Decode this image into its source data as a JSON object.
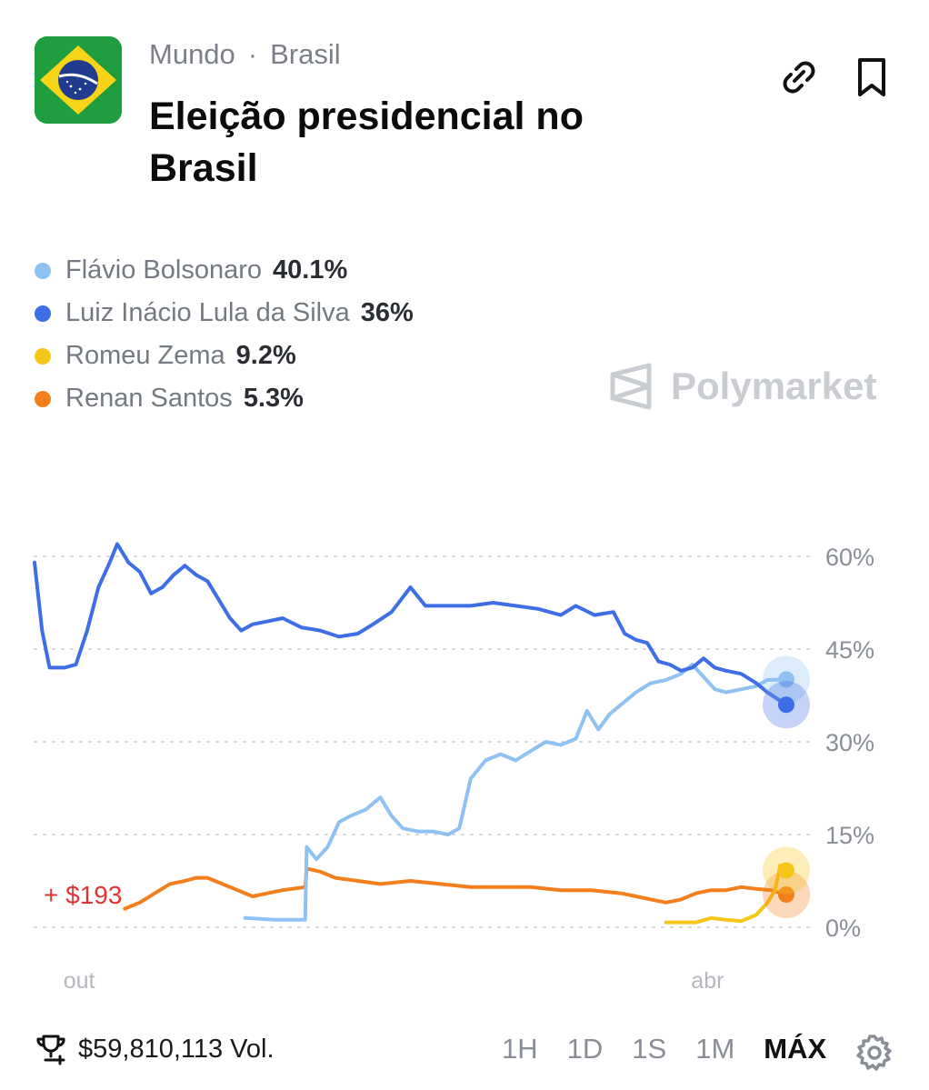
{
  "header": {
    "breadcrumb": [
      "Mundo",
      "Brasil"
    ],
    "separator": "·",
    "title": "Eleição presidencial no Brasil",
    "flag_icon": "brazil-flag-icon",
    "actions": [
      "link-icon",
      "bookmark-icon"
    ]
  },
  "legend": [
    {
      "name": "Flávio Bolsonaro",
      "value": "40.1%",
      "color": "#8fc1f3"
    },
    {
      "name": "Luiz Inácio Lula da Silva",
      "value": "36%",
      "color": "#3d6ee6"
    },
    {
      "name": "Romeu Zema",
      "value": "9.2%",
      "color": "#f5c518"
    },
    {
      "name": "Renan Santos",
      "value": "5.3%",
      "color": "#f27f1b"
    }
  ],
  "watermark": "Polymarket",
  "chart_data": {
    "type": "line",
    "ylim": [
      0,
      60
    ],
    "y_ticks": [
      "60%",
      "45%",
      "30%",
      "15%",
      "0%"
    ],
    "y_tick_values": [
      60,
      45,
      30,
      15,
      0
    ],
    "x_ticks": [
      "out",
      "abr"
    ],
    "x_tick_positions": [
      0.065,
      0.9
    ],
    "x_range": [
      0,
      1
    ],
    "annotation": "+ $193",
    "series": [
      {
        "name": "Luiz Inácio Lula da Silva",
        "color": "#3d6ee6",
        "points": [
          [
            0,
            59
          ],
          [
            0.01,
            48
          ],
          [
            0.02,
            42
          ],
          [
            0.04,
            42
          ],
          [
            0.055,
            42.5
          ],
          [
            0.07,
            48
          ],
          [
            0.085,
            55
          ],
          [
            0.1,
            59
          ],
          [
            0.11,
            62
          ],
          [
            0.125,
            59
          ],
          [
            0.14,
            57.5
          ],
          [
            0.155,
            54
          ],
          [
            0.17,
            55
          ],
          [
            0.185,
            57
          ],
          [
            0.2,
            58.5
          ],
          [
            0.215,
            57
          ],
          [
            0.23,
            56
          ],
          [
            0.245,
            53
          ],
          [
            0.26,
            50
          ],
          [
            0.275,
            48
          ],
          [
            0.29,
            49
          ],
          [
            0.31,
            49.5
          ],
          [
            0.33,
            50
          ],
          [
            0.355,
            48.5
          ],
          [
            0.38,
            48
          ],
          [
            0.405,
            47
          ],
          [
            0.43,
            47.5
          ],
          [
            0.45,
            49
          ],
          [
            0.475,
            51
          ],
          [
            0.5,
            55
          ],
          [
            0.52,
            52
          ],
          [
            0.55,
            52
          ],
          [
            0.58,
            52
          ],
          [
            0.61,
            52.5
          ],
          [
            0.64,
            52
          ],
          [
            0.67,
            51.5
          ],
          [
            0.7,
            50.5
          ],
          [
            0.72,
            52
          ],
          [
            0.745,
            50.5
          ],
          [
            0.77,
            51
          ],
          [
            0.785,
            47.5
          ],
          [
            0.8,
            46.5
          ],
          [
            0.815,
            46
          ],
          [
            0.83,
            43
          ],
          [
            0.845,
            42.5
          ],
          [
            0.86,
            41.5
          ],
          [
            0.875,
            42
          ],
          [
            0.89,
            43.5
          ],
          [
            0.905,
            42
          ],
          [
            0.92,
            41.5
          ],
          [
            0.94,
            41
          ],
          [
            0.96,
            39.5
          ],
          [
            0.975,
            38
          ],
          [
            1,
            36
          ]
        ]
      },
      {
        "name": "Flávio Bolsonaro",
        "color": "#8fc1f3",
        "points": [
          [
            0.28,
            1.5
          ],
          [
            0.32,
            1.2
          ],
          [
            0.36,
            1.2
          ],
          [
            0.362,
            13
          ],
          [
            0.375,
            11
          ],
          [
            0.39,
            13
          ],
          [
            0.405,
            17
          ],
          [
            0.42,
            18
          ],
          [
            0.44,
            19
          ],
          [
            0.46,
            21
          ],
          [
            0.475,
            18
          ],
          [
            0.49,
            16
          ],
          [
            0.51,
            15.5
          ],
          [
            0.53,
            15.5
          ],
          [
            0.55,
            15
          ],
          [
            0.565,
            16
          ],
          [
            0.58,
            24
          ],
          [
            0.6,
            27
          ],
          [
            0.62,
            28
          ],
          [
            0.64,
            27
          ],
          [
            0.66,
            28.5
          ],
          [
            0.68,
            30
          ],
          [
            0.7,
            29.5
          ],
          [
            0.72,
            30.5
          ],
          [
            0.735,
            35
          ],
          [
            0.75,
            32
          ],
          [
            0.765,
            34.5
          ],
          [
            0.78,
            36
          ],
          [
            0.8,
            38
          ],
          [
            0.82,
            39.5
          ],
          [
            0.84,
            40
          ],
          [
            0.86,
            41
          ],
          [
            0.875,
            42.5
          ],
          [
            0.89,
            40.5
          ],
          [
            0.905,
            38.5
          ],
          [
            0.92,
            38
          ],
          [
            0.94,
            38.5
          ],
          [
            0.96,
            39
          ],
          [
            0.975,
            40
          ],
          [
            1,
            40.1
          ]
        ]
      },
      {
        "name": "Renan Santos",
        "color": "#f27f1b",
        "points": [
          [
            0.12,
            3
          ],
          [
            0.14,
            4
          ],
          [
            0.16,
            5.5
          ],
          [
            0.18,
            7
          ],
          [
            0.2,
            7.5
          ],
          [
            0.215,
            8
          ],
          [
            0.23,
            8
          ],
          [
            0.25,
            7
          ],
          [
            0.27,
            6
          ],
          [
            0.29,
            5
          ],
          [
            0.31,
            5.5
          ],
          [
            0.33,
            6
          ],
          [
            0.36,
            6.5
          ],
          [
            0.362,
            9.5
          ],
          [
            0.38,
            9
          ],
          [
            0.4,
            8
          ],
          [
            0.43,
            7.5
          ],
          [
            0.46,
            7
          ],
          [
            0.5,
            7.5
          ],
          [
            0.54,
            7
          ],
          [
            0.58,
            6.5
          ],
          [
            0.62,
            6.5
          ],
          [
            0.66,
            6.5
          ],
          [
            0.7,
            6
          ],
          [
            0.74,
            6
          ],
          [
            0.78,
            5.5
          ],
          [
            0.8,
            5
          ],
          [
            0.82,
            4.5
          ],
          [
            0.84,
            4
          ],
          [
            0.86,
            4.5
          ],
          [
            0.88,
            5.5
          ],
          [
            0.9,
            6
          ],
          [
            0.92,
            6
          ],
          [
            0.94,
            6.5
          ],
          [
            0.96,
            6.2
          ],
          [
            0.98,
            6
          ],
          [
            1,
            5.3
          ]
        ]
      },
      {
        "name": "Romeu Zema",
        "color": "#f5c518",
        "points": [
          [
            0.84,
            0.8
          ],
          [
            0.88,
            0.8
          ],
          [
            0.9,
            1.5
          ],
          [
            0.92,
            1.2
          ],
          [
            0.94,
            1
          ],
          [
            0.96,
            2
          ],
          [
            0.975,
            4
          ],
          [
            0.985,
            6
          ],
          [
            0.992,
            10
          ],
          [
            1,
            9.2
          ]
        ]
      }
    ]
  },
  "footer": {
    "volume": "$59,810,113 Vol.",
    "volume_icon": "trophy-icon",
    "ranges": [
      "1H",
      "1D",
      "1S",
      "1M",
      "MÁX"
    ],
    "active_range": "MÁX",
    "settings_icon": "gear-icon"
  }
}
